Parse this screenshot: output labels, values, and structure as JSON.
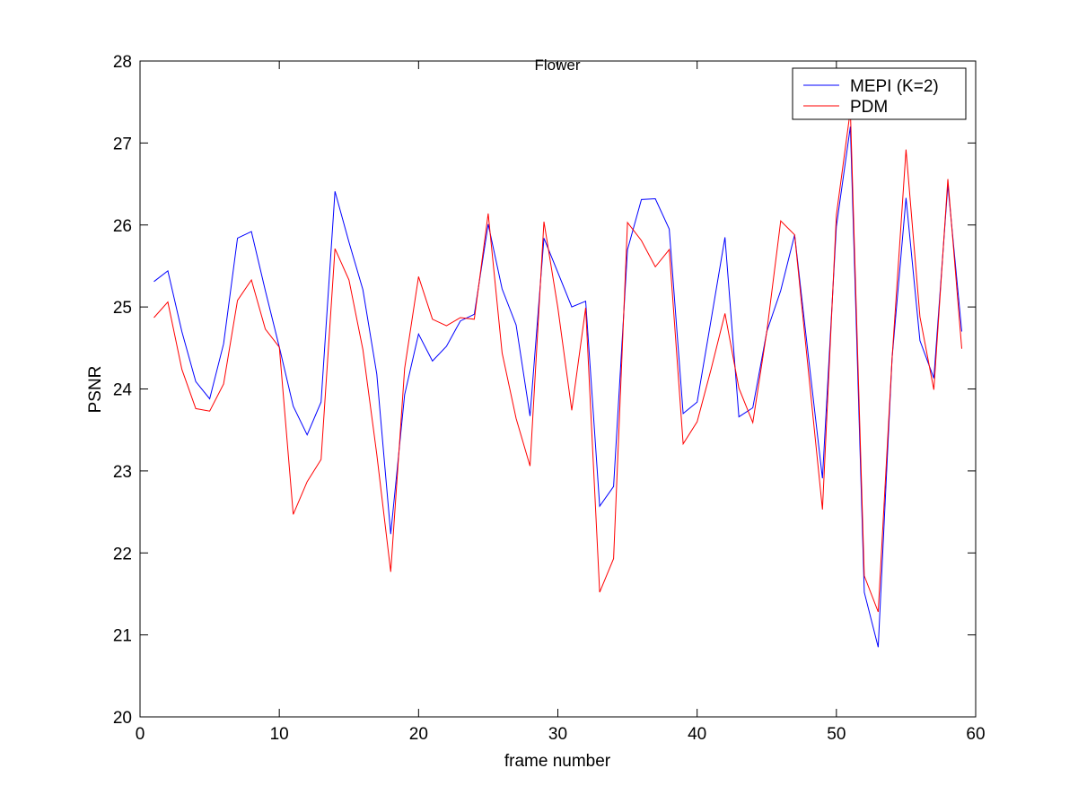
{
  "chart_data": {
    "type": "line",
    "title": "Flower",
    "xlabel": "frame number",
    "ylabel": "PSNR",
    "xlim": [
      0,
      60
    ],
    "ylim": [
      20,
      28
    ],
    "xticks": [
      0,
      10,
      20,
      30,
      40,
      50,
      60
    ],
    "yticks": [
      20,
      21,
      22,
      23,
      24,
      25,
      26,
      27,
      28
    ],
    "grid": false,
    "legend_position": "top-right",
    "x": [
      1,
      2,
      3,
      4,
      5,
      6,
      7,
      8,
      9,
      10,
      11,
      12,
      13,
      14,
      15,
      16,
      17,
      18,
      19,
      20,
      21,
      22,
      23,
      24,
      25,
      26,
      27,
      28,
      29,
      30,
      31,
      32,
      33,
      34,
      35,
      36,
      37,
      38,
      39,
      40,
      41,
      42,
      43,
      44,
      45,
      46,
      47,
      48,
      49,
      50,
      51,
      52,
      53,
      54,
      55,
      56,
      57,
      58,
      59
    ],
    "series": [
      {
        "name": "MEPI (K=2)",
        "color": "#0000ff",
        "values": [
          25.31,
          25.44,
          24.7,
          24.09,
          23.88,
          24.55,
          25.84,
          25.92,
          25.2,
          24.51,
          23.79,
          23.44,
          23.84,
          26.41,
          25.79,
          25.21,
          24.18,
          22.23,
          23.93,
          24.67,
          24.34,
          24.52,
          24.83,
          24.91,
          26.01,
          25.22,
          24.78,
          23.67,
          25.84,
          25.42,
          25.0,
          25.07,
          22.57,
          22.81,
          25.7,
          26.31,
          26.32,
          25.95,
          23.7,
          23.84,
          24.84,
          25.85,
          23.66,
          23.77,
          24.7,
          25.2,
          25.88,
          24.38,
          22.91,
          25.98,
          27.2,
          21.52,
          20.85,
          24.38,
          26.33,
          24.59,
          24.13,
          26.49,
          24.7
        ]
      },
      {
        "name": "PDM",
        "color": "#ff0000",
        "values": [
          24.87,
          25.06,
          24.24,
          23.76,
          23.73,
          24.06,
          25.08,
          25.33,
          24.73,
          24.51,
          22.47,
          22.87,
          23.14,
          25.71,
          25.33,
          24.48,
          23.2,
          21.77,
          24.25,
          25.37,
          24.85,
          24.77,
          24.87,
          24.85,
          26.14,
          24.44,
          23.64,
          23.06,
          26.04,
          24.99,
          23.74,
          24.99,
          21.52,
          21.93,
          26.03,
          25.81,
          25.49,
          25.7,
          23.33,
          23.6,
          24.24,
          24.92,
          24.01,
          23.59,
          24.7,
          26.05,
          25.88,
          24.2,
          22.53,
          26.12,
          27.4,
          21.72,
          21.28,
          24.38,
          26.92,
          24.88,
          23.99,
          26.56,
          24.49
        ]
      }
    ]
  }
}
